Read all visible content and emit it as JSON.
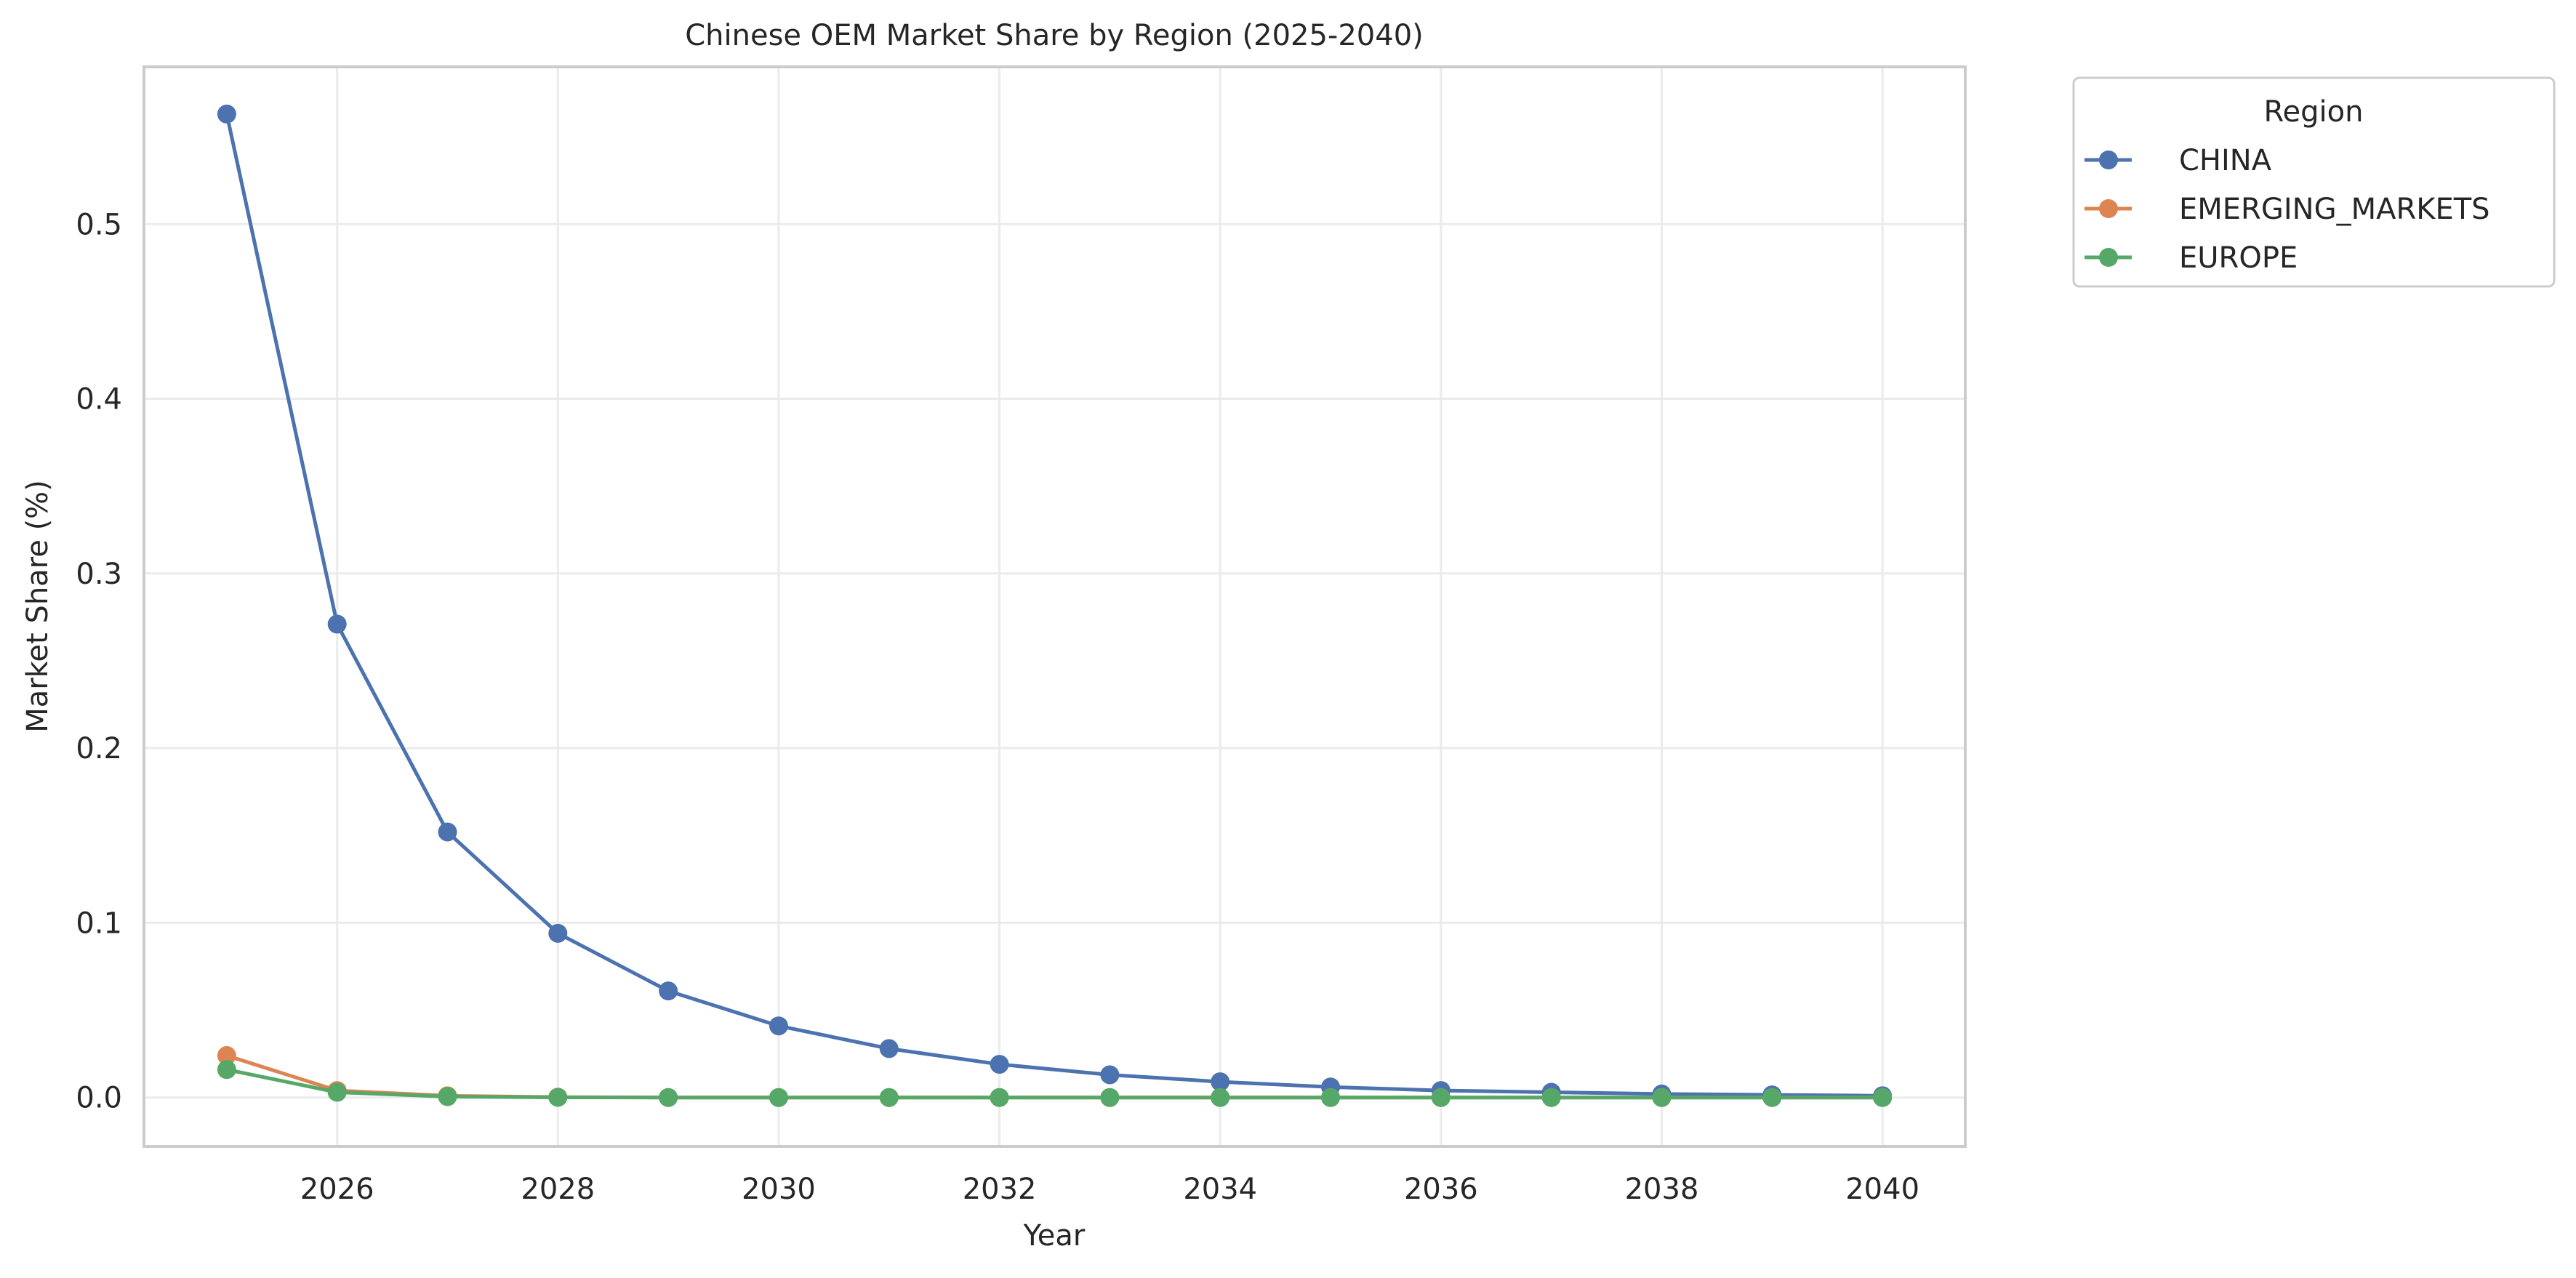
{
  "chart_data": {
    "type": "line",
    "title": "Chinese OEM Market Share by Region (2025-2040)",
    "xlabel": "Year",
    "ylabel": "Market Share (%)",
    "x": [
      2025,
      2026,
      2027,
      2028,
      2029,
      2030,
      2031,
      2032,
      2033,
      2034,
      2035,
      2036,
      2037,
      2038,
      2039,
      2040
    ],
    "xlim": [
      2024.25,
      2040.75
    ],
    "ylim": [
      -0.028,
      0.59
    ],
    "xticks": [
      2026,
      2028,
      2030,
      2032,
      2034,
      2036,
      2038,
      2040
    ],
    "xtick_labels": [
      "2026",
      "2028",
      "2030",
      "2032",
      "2034",
      "2036",
      "2038",
      "2040"
    ],
    "yticks": [
      0.0,
      0.1,
      0.2,
      0.3,
      0.4,
      0.5
    ],
    "ytick_labels": [
      "0.0",
      "0.1",
      "0.2",
      "0.3",
      "0.4",
      "0.5"
    ],
    "grid": true,
    "legend": {
      "title": "Region",
      "placement": "outside upper right"
    },
    "series": [
      {
        "name": "CHINA",
        "color": "#4c72b0",
        "marker": "circle",
        "values": [
          0.563,
          0.271,
          0.152,
          0.094,
          0.061,
          0.041,
          0.028,
          0.019,
          0.013,
          0.009,
          0.006,
          0.004,
          0.003,
          0.002,
          0.0015,
          0.001
        ]
      },
      {
        "name": "EMERGING_MARKETS",
        "color": "#dd8452",
        "marker": "circle",
        "values": [
          0.024,
          0.004,
          0.001,
          0.0002,
          0.0,
          0.0,
          0.0,
          0.0,
          0.0,
          0.0,
          0.0,
          0.0,
          0.0,
          0.0,
          0.0,
          0.0
        ]
      },
      {
        "name": "EUROPE",
        "color": "#55a868",
        "marker": "circle",
        "values": [
          0.016,
          0.003,
          0.0005,
          0.0001,
          0.0,
          0.0,
          0.0,
          0.0,
          0.0,
          0.0,
          0.0,
          0.0,
          0.0,
          0.0,
          0.0,
          0.0
        ]
      }
    ]
  }
}
